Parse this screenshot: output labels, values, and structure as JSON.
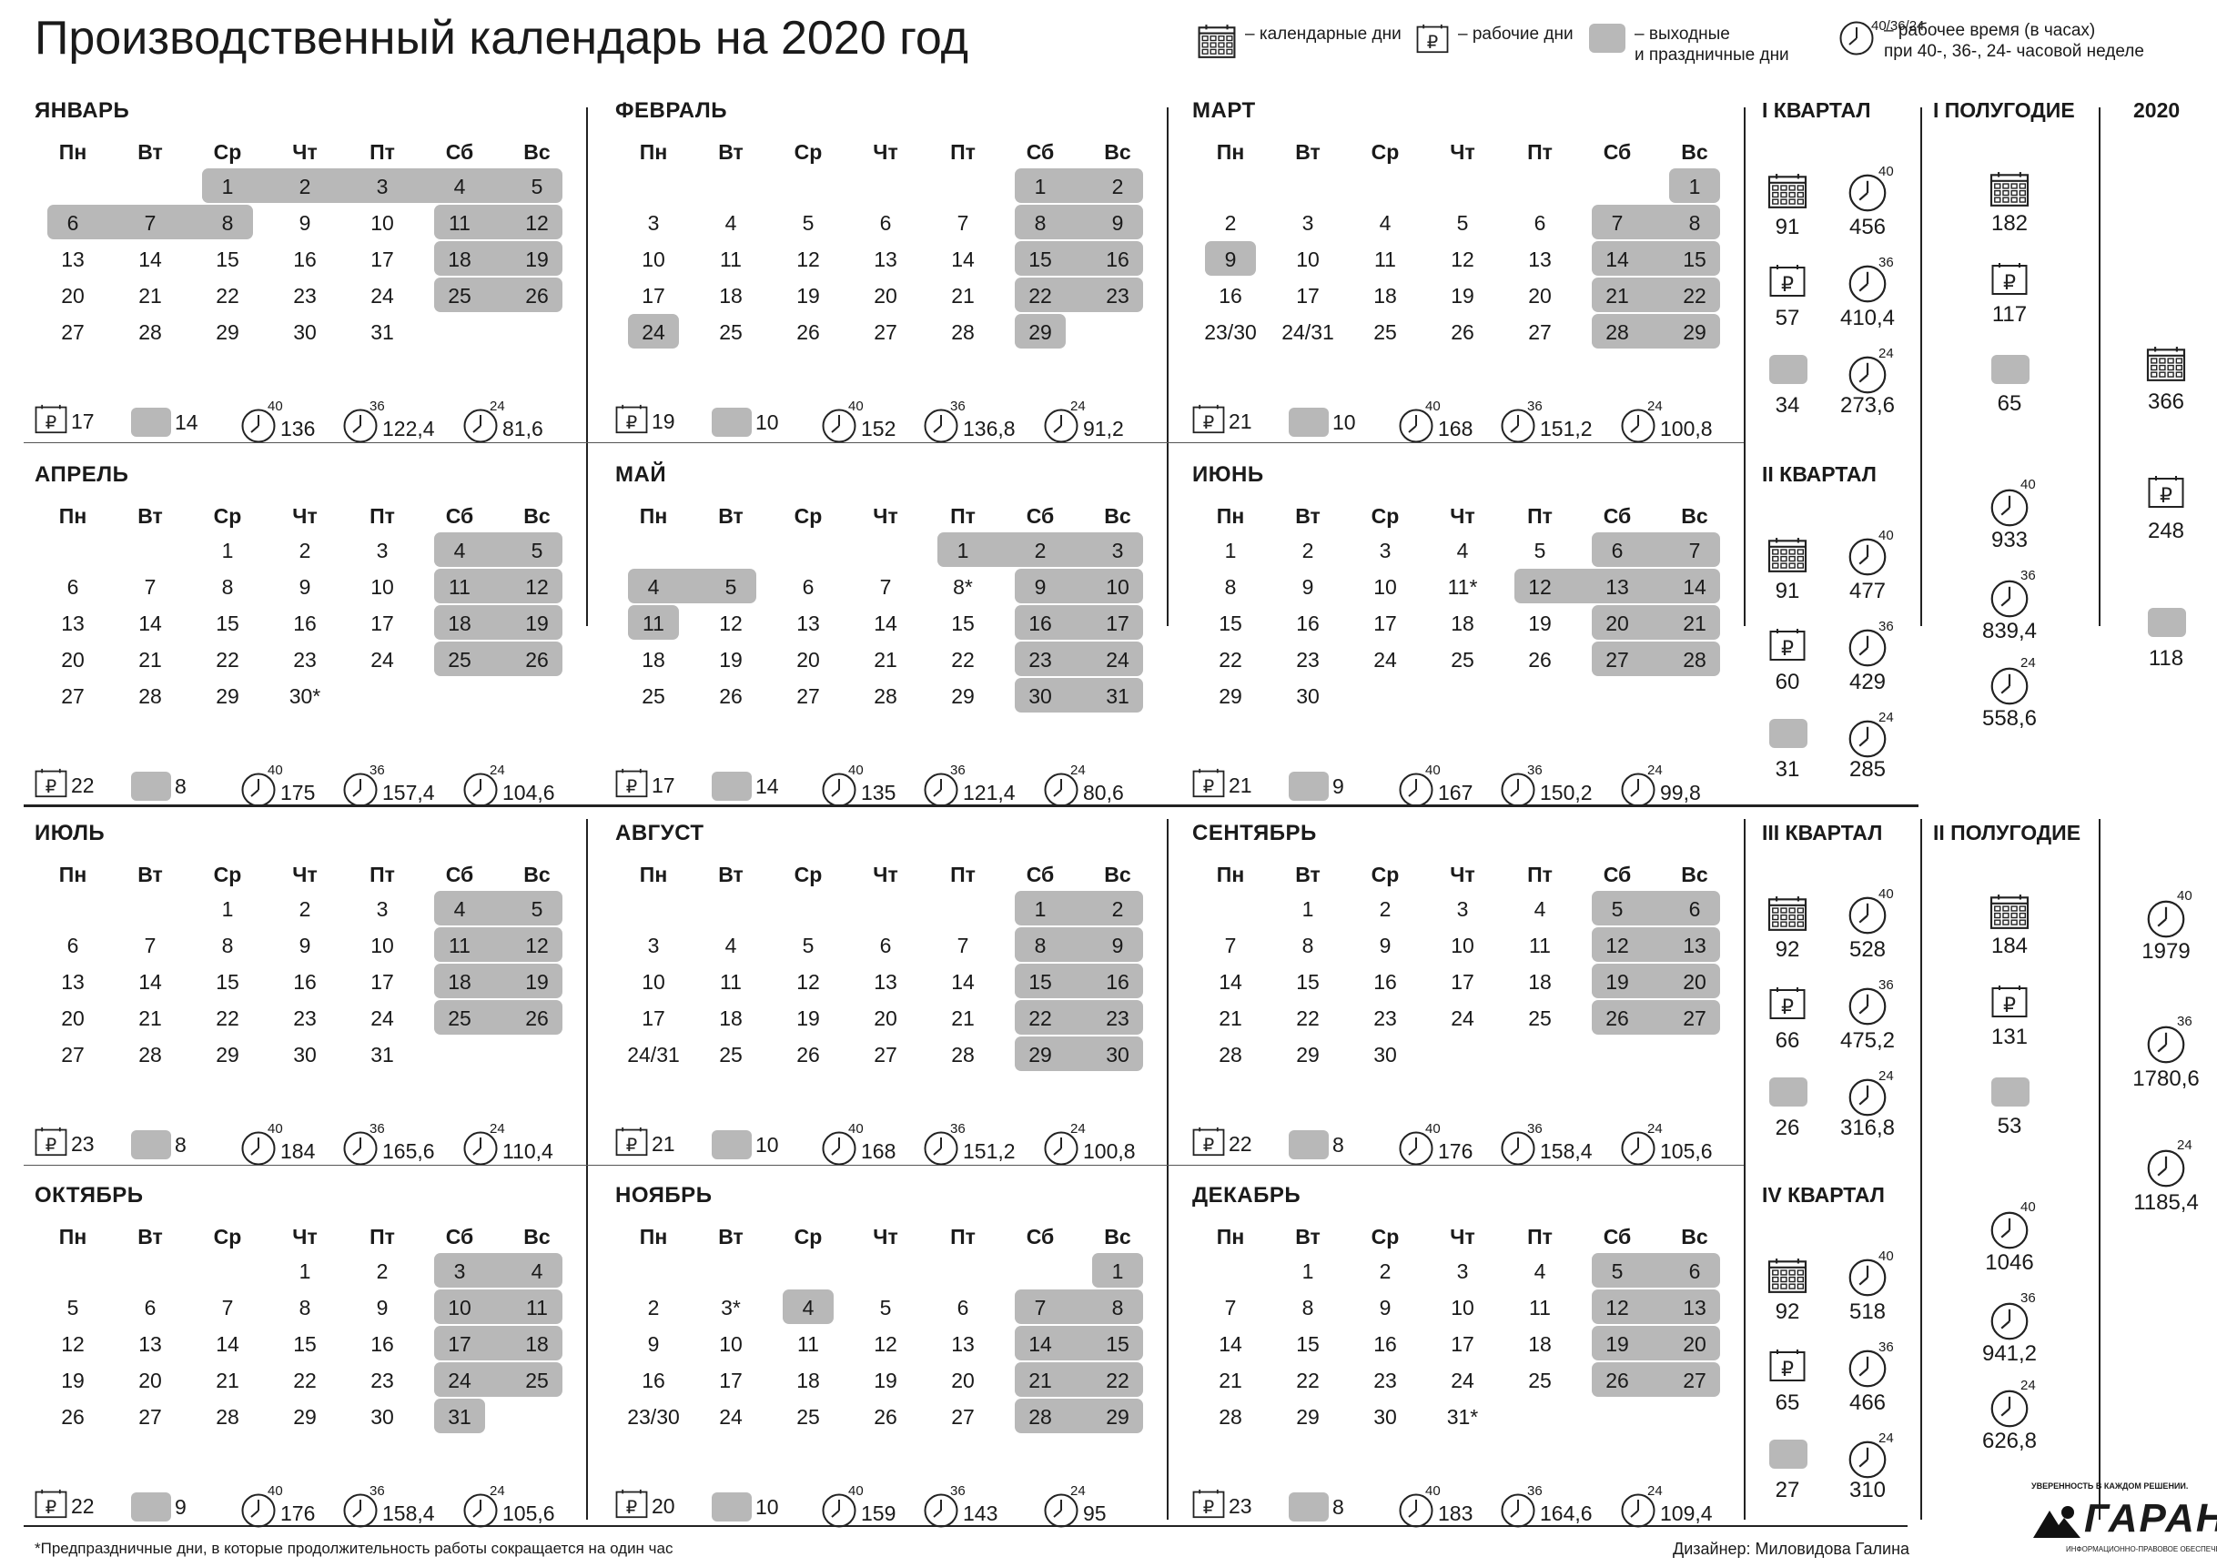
{
  "title": "Производственный календарь на 2020 год",
  "legend": {
    "calendar": "– календарные дни",
    "working": "– рабочие дни",
    "holidays": "– выходные\nи праздничные дни",
    "hours_top": "40/36/24",
    "hours": "– рабочее время (в часах)\nпри 40-, 36-, 24- часовой неделе"
  },
  "weekdays": [
    "Пн",
    "Вт",
    "Ср",
    "Чт",
    "Пт",
    "Сб",
    "Вс"
  ],
  "hours_tags": [
    "40",
    "36",
    "24"
  ],
  "ruble": "₽",
  "months": [
    {
      "name": "ЯНВАРЬ",
      "offset": 2,
      "days": 31,
      "hol": [
        1,
        2,
        3,
        4,
        5,
        6,
        7,
        8,
        11,
        12,
        18,
        19,
        25,
        26
      ],
      "short": [],
      "merged": [],
      "stats": {
        "working": "17",
        "off": "14",
        "h40": "136",
        "h36": "122,4",
        "h24": "81,6"
      }
    },
    {
      "name": "ФЕВРАЛЬ",
      "offset": 5,
      "days": 29,
      "hol": [
        1,
        2,
        8,
        9,
        15,
        16,
        22,
        23,
        24,
        29
      ],
      "short": [],
      "merged": [],
      "stats": {
        "working": "19",
        "off": "10",
        "h40": "152",
        "h36": "136,8",
        "h24": "91,2"
      }
    },
    {
      "name": "МАРТ",
      "offset": 6,
      "days": 31,
      "hol": [
        1,
        7,
        8,
        9,
        14,
        15,
        21,
        22,
        28,
        29
      ],
      "short": [],
      "merged": [
        [
          23,
          30
        ],
        [
          24,
          31
        ]
      ],
      "stats": {
        "working": "21",
        "off": "10",
        "h40": "168",
        "h36": "151,2",
        "h24": "100,8"
      }
    },
    {
      "name": "АПРЕЛЬ",
      "offset": 2,
      "days": 30,
      "hol": [
        4,
        5,
        11,
        12,
        18,
        19,
        25,
        26
      ],
      "short": [
        30
      ],
      "merged": [],
      "stats": {
        "working": "22",
        "off": "8",
        "h40": "175",
        "h36": "157,4",
        "h24": "104,6"
      }
    },
    {
      "name": "МАЙ",
      "offset": 4,
      "days": 31,
      "hol": [
        1,
        2,
        3,
        4,
        5,
        9,
        10,
        11,
        16,
        17,
        23,
        24,
        30,
        31
      ],
      "short": [
        8
      ],
      "merged": [],
      "stats": {
        "working": "17",
        "off": "14",
        "h40": "135",
        "h36": "121,4",
        "h24": "80,6"
      }
    },
    {
      "name": "ИЮНЬ",
      "offset": 0,
      "days": 30,
      "hol": [
        6,
        7,
        12,
        13,
        14,
        20,
        21,
        27,
        28
      ],
      "short": [
        11
      ],
      "merged": [],
      "stats": {
        "working": "21",
        "off": "9",
        "h40": "167",
        "h36": "150,2",
        "h24": "99,8"
      }
    },
    {
      "name": "ИЮЛЬ",
      "offset": 2,
      "days": 31,
      "hol": [
        4,
        5,
        11,
        12,
        18,
        19,
        25,
        26
      ],
      "short": [],
      "merged": [],
      "stats": {
        "working": "23",
        "off": "8",
        "h40": "184",
        "h36": "165,6",
        "h24": "110,4"
      }
    },
    {
      "name": "АВГУСТ",
      "offset": 5,
      "days": 31,
      "hol": [
        1,
        2,
        8,
        9,
        15,
        16,
        22,
        23,
        29,
        30
      ],
      "short": [],
      "merged": [
        [
          24,
          31
        ]
      ],
      "stats": {
        "working": "21",
        "off": "10",
        "h40": "168",
        "h36": "151,2",
        "h24": "100,8"
      }
    },
    {
      "name": "СЕНТЯБРЬ",
      "offset": 1,
      "days": 30,
      "hol": [
        5,
        6,
        12,
        13,
        19,
        20,
        26,
        27
      ],
      "short": [],
      "merged": [],
      "stats": {
        "working": "22",
        "off": "8",
        "h40": "176",
        "h36": "158,4",
        "h24": "105,6"
      }
    },
    {
      "name": "ОКТЯБРЬ",
      "offset": 3,
      "days": 31,
      "hol": [
        3,
        4,
        10,
        11,
        17,
        18,
        24,
        25,
        31
      ],
      "short": [],
      "merged": [],
      "stats": {
        "working": "22",
        "off": "9",
        "h40": "176",
        "h36": "158,4",
        "h24": "105,6"
      }
    },
    {
      "name": "НОЯБРЬ",
      "offset": 6,
      "days": 30,
      "hol": [
        1,
        4,
        7,
        8,
        14,
        15,
        21,
        22,
        28,
        29
      ],
      "short": [
        3
      ],
      "merged": [
        [
          23,
          30
        ]
      ],
      "stats": {
        "working": "20",
        "off": "10",
        "h40": "159",
        "h36": "143",
        "h24": "95"
      }
    },
    {
      "name": "ДЕКАБРЬ",
      "offset": 1,
      "days": 31,
      "hol": [
        5,
        6,
        12,
        13,
        19,
        20,
        26,
        27
      ],
      "short": [
        31
      ],
      "merged": [],
      "stats": {
        "working": "23",
        "off": "8",
        "h40": "183",
        "h36": "164,6",
        "h24": "109,4"
      }
    }
  ],
  "quarters": [
    {
      "label": "I КВАРТАЛ",
      "cal": "91",
      "work": "57",
      "off": "34",
      "h40": "456",
      "h36": "410,4",
      "h24": "273,6"
    },
    {
      "label": "II КВАРТАЛ",
      "cal": "91",
      "work": "60",
      "off": "31",
      "h40": "477",
      "h36": "429",
      "h24": "285"
    },
    {
      "label": "III КВАРТАЛ",
      "cal": "92",
      "work": "66",
      "off": "26",
      "h40": "528",
      "h36": "475,2",
      "h24": "316,8"
    },
    {
      "label": "IV КВАРТАЛ",
      "cal": "92",
      "work": "65",
      "off": "27",
      "h40": "518",
      "h36": "466",
      "h24": "310"
    }
  ],
  "halves": [
    {
      "label": "I ПОЛУГОДИЕ",
      "cal": "182",
      "work": "117",
      "off": "65",
      "h40": "933",
      "h36": "839,4",
      "h24": "558,6"
    },
    {
      "label": "II ПОЛУГОДИЕ",
      "cal": "184",
      "work": "131",
      "off": "53",
      "h40": "1046",
      "h36": "941,2",
      "h24": "626,8"
    }
  ],
  "year": {
    "label": "2020",
    "cal": "366",
    "work": "248",
    "off": "118",
    "h40": "1979",
    "h36": "1780,6",
    "h24": "1185,4"
  },
  "footnote": "*Предпраздничные дни, в которые продолжительность работы сокращается на один час",
  "designer": "Дизайнер: Миловидова Галина",
  "brand": {
    "slogan": "УВЕРЕННОСТЬ В КАЖДОМ РЕШЕНИИ.",
    "name": "ГАРАНТ",
    "sub": "ИНФОРМАЦИОННО-ПРАВОВОЕ ОБЕСПЕЧЕНИЕ"
  }
}
